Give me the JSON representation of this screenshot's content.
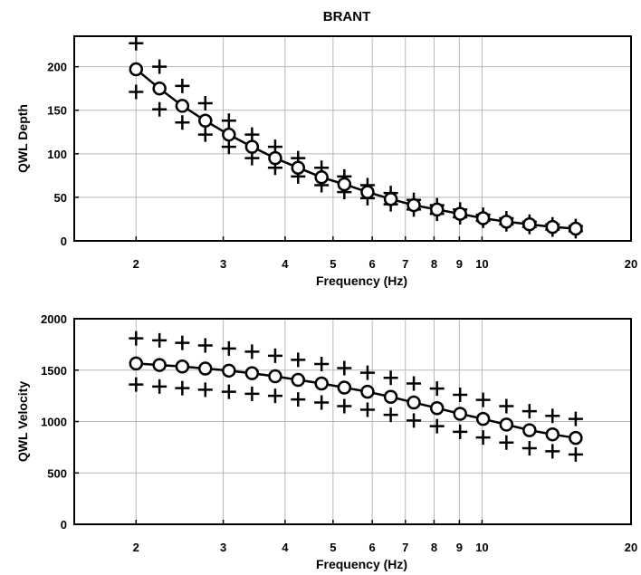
{
  "figure": {
    "title": "BRANT"
  },
  "chart_data": [
    {
      "type": "line",
      "title": "BRANT",
      "xlabel": "Frequency (Hz)",
      "ylabel": "QWL Depth",
      "xscale": "log",
      "xlim": [
        1.5,
        20
      ],
      "ylim": [
        0,
        235
      ],
      "grid": true,
      "xticks": [
        2,
        3,
        4,
        5,
        6,
        7,
        8,
        9,
        10,
        20
      ],
      "yticks": [
        0,
        50,
        100,
        150,
        200
      ],
      "series": [
        {
          "x": [
            2.0,
            2.23,
            2.48,
            2.76,
            3.08,
            3.43,
            3.82,
            4.25,
            4.74,
            5.27,
            5.87,
            6.54,
            7.28,
            8.11,
            9.03,
            10.05,
            11.2,
            12.47,
            13.88,
            15.46
          ],
          "y": [
            197,
            175,
            155,
            138,
            122,
            108,
            95,
            84,
            73,
            65,
            56,
            48,
            41,
            36,
            31,
            26,
            22,
            19,
            16,
            14
          ],
          "upper": [
            227,
            200,
            178,
            158,
            138,
            122,
            108,
            95,
            84,
            74,
            64,
            55,
            47,
            41,
            36,
            30,
            26,
            22,
            19,
            17
          ],
          "lower": [
            171,
            151,
            136,
            122,
            108,
            95,
            84,
            74,
            64,
            56,
            49,
            42,
            36,
            31,
            27,
            23,
            19,
            16,
            13,
            11
          ]
        }
      ]
    },
    {
      "type": "line",
      "xlabel": "Frequency (Hz)",
      "ylabel": "QWL Velocity",
      "xscale": "log",
      "xlim": [
        1.5,
        20
      ],
      "ylim": [
        0,
        2000
      ],
      "grid": true,
      "xticks": [
        2,
        3,
        4,
        5,
        6,
        7,
        8,
        9,
        10,
        20
      ],
      "yticks": [
        0,
        500,
        1000,
        1500,
        2000
      ],
      "series": [
        {
          "x": [
            2.0,
            2.23,
            2.48,
            2.76,
            3.08,
            3.43,
            3.82,
            4.25,
            4.74,
            5.27,
            5.87,
            6.54,
            7.28,
            8.11,
            9.03,
            10.05,
            11.2,
            12.47,
            13.88,
            15.46
          ],
          "y": [
            1565,
            1550,
            1535,
            1515,
            1495,
            1470,
            1440,
            1405,
            1370,
            1330,
            1290,
            1240,
            1185,
            1130,
            1075,
            1025,
            970,
            915,
            875,
            840
          ],
          "upper": [
            1810,
            1790,
            1765,
            1740,
            1710,
            1680,
            1640,
            1600,
            1560,
            1520,
            1475,
            1425,
            1370,
            1320,
            1260,
            1210,
            1150,
            1100,
            1055,
            1025
          ],
          "lower": [
            1360,
            1340,
            1325,
            1310,
            1290,
            1270,
            1250,
            1215,
            1185,
            1150,
            1115,
            1065,
            1010,
            955,
            900,
            845,
            795,
            740,
            710,
            680
          ]
        }
      ]
    }
  ]
}
